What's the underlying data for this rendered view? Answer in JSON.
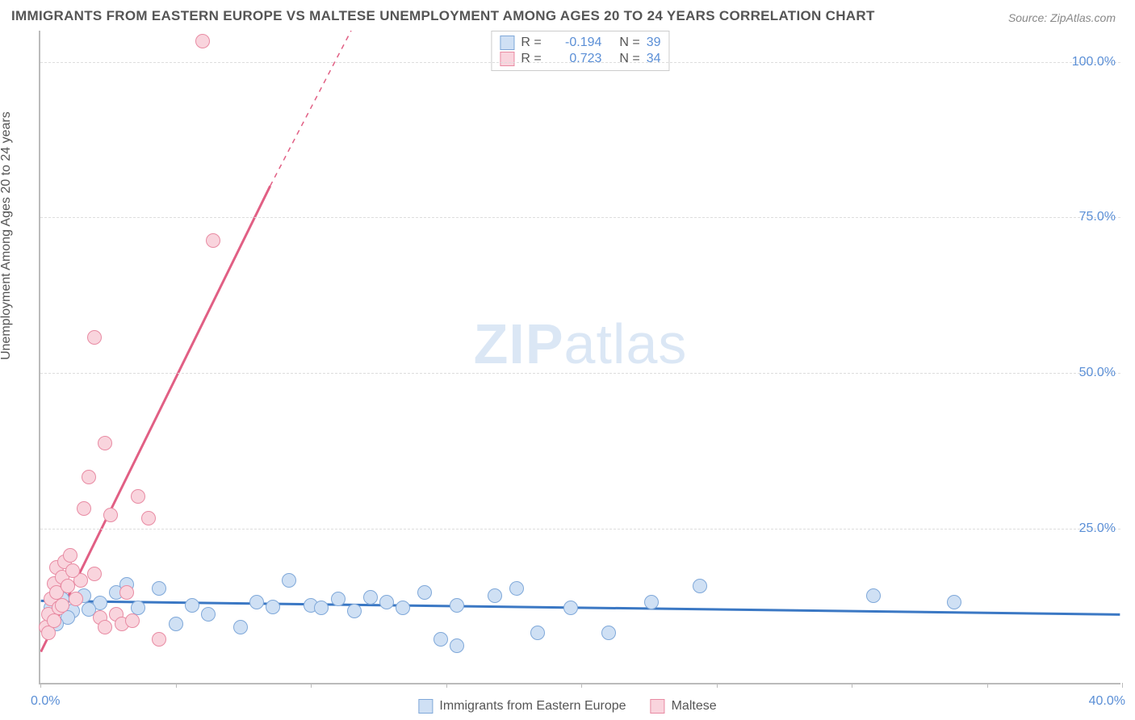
{
  "title": "IMMIGRANTS FROM EASTERN EUROPE VS MALTESE UNEMPLOYMENT AMONG AGES 20 TO 24 YEARS CORRELATION CHART",
  "source_label": "Source: ",
  "source_value": "ZipAtlas.com",
  "watermark_bold": "ZIP",
  "watermark_light": "atlas",
  "y_axis_title": "Unemployment Among Ages 20 to 24 years",
  "chart": {
    "type": "scatter",
    "background_color": "#ffffff",
    "grid_color": "#dddddd",
    "axis_color": "#bbbbbb",
    "xlim": [
      0,
      40
    ],
    "ylim": [
      0,
      105
    ],
    "x_tick_positions": [
      0,
      5,
      10,
      15,
      20,
      25,
      30,
      35,
      40
    ],
    "x_tick_labels_shown": {
      "0": "0.0%",
      "40": "40.0%"
    },
    "y_ticks": [
      {
        "v": 25,
        "label": "25.0%"
      },
      {
        "v": 50,
        "label": "50.0%"
      },
      {
        "v": 75,
        "label": "75.0%"
      },
      {
        "v": 100,
        "label": "100.0%"
      }
    ],
    "tick_label_color": "#5b8fd6",
    "tick_label_fontsize": 16,
    "title_fontsize": 17,
    "title_color": "#555555",
    "series": [
      {
        "id": "blue",
        "name": "Immigrants from Eastern Europe",
        "fill": "#cfe0f4",
        "stroke": "#7fa8d9",
        "line_color": "#3b78c4",
        "marker_radius": 9,
        "stroke_width": 1.2,
        "r_label": "R = ",
        "r_value": "-0.194",
        "n_label": "N = ",
        "n_value": "39",
        "trend": {
          "x1": 0,
          "y1": 13.2,
          "x2": 40,
          "y2": 11.0,
          "width": 3
        },
        "points": [
          [
            0.4,
            12.0
          ],
          [
            0.8,
            13.5
          ],
          [
            1.2,
            11.5
          ],
          [
            1.6,
            14.0
          ],
          [
            2.2,
            12.8
          ],
          [
            2.8,
            14.5
          ],
          [
            3.2,
            15.8
          ],
          [
            3.6,
            12.0
          ],
          [
            4.4,
            15.2
          ],
          [
            5.0,
            9.5
          ],
          [
            5.6,
            12.5
          ],
          [
            6.2,
            11.0
          ],
          [
            7.4,
            9.0
          ],
          [
            8.0,
            13.0
          ],
          [
            8.6,
            12.2
          ],
          [
            9.2,
            16.5
          ],
          [
            10.0,
            12.5
          ],
          [
            10.4,
            12.0
          ],
          [
            11.0,
            13.5
          ],
          [
            11.6,
            11.5
          ],
          [
            12.2,
            13.8
          ],
          [
            12.8,
            13.0
          ],
          [
            13.4,
            12.0
          ],
          [
            14.2,
            14.5
          ],
          [
            14.8,
            7.0
          ],
          [
            15.4,
            12.5
          ],
          [
            15.4,
            6.0
          ],
          [
            16.8,
            14.0
          ],
          [
            17.6,
            15.2
          ],
          [
            18.4,
            8.0
          ],
          [
            19.6,
            12.0
          ],
          [
            21.0,
            8.0
          ],
          [
            22.6,
            13.0
          ],
          [
            24.4,
            15.5
          ],
          [
            30.8,
            14.0
          ],
          [
            33.8,
            13.0
          ],
          [
            1.0,
            10.5
          ],
          [
            1.8,
            11.8
          ],
          [
            0.6,
            9.5
          ]
        ]
      },
      {
        "id": "pink",
        "name": "Maltese",
        "fill": "#f9d4dd",
        "stroke": "#e88ba3",
        "line_color": "#e15f84",
        "marker_radius": 9,
        "stroke_width": 1.2,
        "r_label": "R = ",
        "r_value": "0.723",
        "n_label": "N = ",
        "n_value": "34",
        "trend_solid": {
          "x1": 0,
          "y1": 5.0,
          "x2": 8.5,
          "y2": 80.0,
          "width": 3
        },
        "trend_dashed": {
          "x1": 8.5,
          "y1": 80.0,
          "x2": 11.5,
          "y2": 105.0,
          "width": 1.5,
          "dash": "6,6"
        },
        "points": [
          [
            0.2,
            9.0
          ],
          [
            0.3,
            11.0
          ],
          [
            0.4,
            13.5
          ],
          [
            0.5,
            16.0
          ],
          [
            0.6,
            18.5
          ],
          [
            0.6,
            14.5
          ],
          [
            0.7,
            12.0
          ],
          [
            0.8,
            17.0
          ],
          [
            0.9,
            19.5
          ],
          [
            1.0,
            15.5
          ],
          [
            1.1,
            20.5
          ],
          [
            1.3,
            13.5
          ],
          [
            1.5,
            16.5
          ],
          [
            1.6,
            28.0
          ],
          [
            1.8,
            33.0
          ],
          [
            2.0,
            17.5
          ],
          [
            2.2,
            10.5
          ],
          [
            2.4,
            9.0
          ],
          [
            2.6,
            27.0
          ],
          [
            2.8,
            11.0
          ],
          [
            3.0,
            9.5
          ],
          [
            3.2,
            14.5
          ],
          [
            3.4,
            10.0
          ],
          [
            3.6,
            30.0
          ],
          [
            4.0,
            26.5
          ],
          [
            4.4,
            7.0
          ],
          [
            2.0,
            55.5
          ],
          [
            2.4,
            38.5
          ],
          [
            6.0,
            103.0
          ],
          [
            6.4,
            71.0
          ],
          [
            0.3,
            8.0
          ],
          [
            0.5,
            10.0
          ],
          [
            0.8,
            12.5
          ],
          [
            1.2,
            18.0
          ]
        ]
      }
    ]
  },
  "legend_bottom": [
    {
      "swatch_fill": "#cfe0f4",
      "swatch_stroke": "#7fa8d9",
      "label": "Immigrants from Eastern Europe"
    },
    {
      "swatch_fill": "#f9d4dd",
      "swatch_stroke": "#e88ba3",
      "label": "Maltese"
    }
  ]
}
